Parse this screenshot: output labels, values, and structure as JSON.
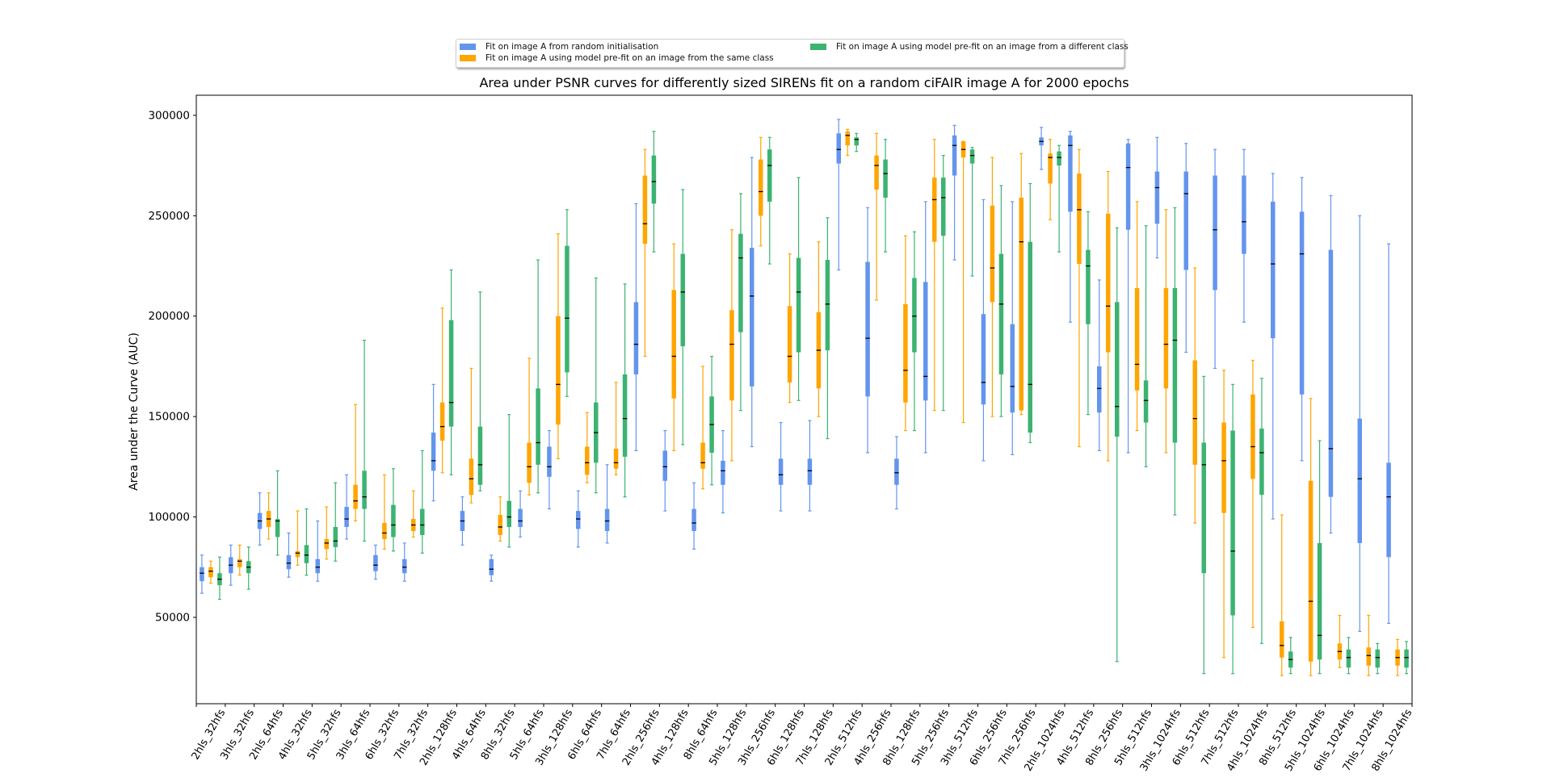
{
  "chart_data": {
    "type": "boxplot",
    "title": "Area under PSNR curves for differently sized SIRENs fit on a random ciFAIR image A for 2000 epochs",
    "ylabel": "Area under the Curve (AUC)",
    "xlabel": "",
    "ylim": [
      7000,
      310000
    ],
    "yticks": [
      50000,
      100000,
      150000,
      200000,
      250000,
      300000
    ],
    "grid": false,
    "legend_position": "top-center",
    "categories": [
      "2hls_32hfs",
      "3hls_32hfs",
      "2hls_64hfs",
      "4hls_32hfs",
      "5hls_32hfs",
      "3hls_64hfs",
      "6hls_32hfs",
      "7hls_32hfs",
      "2hls_128hfs",
      "4hls_64hfs",
      "8hls_32hfs",
      "5hls_64hfs",
      "3hls_128hfs",
      "6hls_64hfs",
      "7hls_64hfs",
      "2hls_256hfs",
      "4hls_128hfs",
      "8hls_64hfs",
      "5hls_128hfs",
      "3hls_256hfs",
      "6hls_128hfs",
      "7hls_128hfs",
      "2hls_512hfs",
      "4hls_256hfs",
      "8hls_128hfs",
      "5hls_256hfs",
      "3hls_512hfs",
      "6hls_256hfs",
      "7hls_256hfs",
      "2hls_1024hfs",
      "4hls_512hfs",
      "8hls_256hfs",
      "5hls_512hfs",
      "3hls_1024hfs",
      "6hls_512hfs",
      "7hls_512hfs",
      "4hls_1024hfs",
      "8hls_512hfs",
      "5hls_1024hfs",
      "6hls_1024hfs",
      "7hls_1024hfs",
      "8hls_1024hfs"
    ],
    "series": [
      {
        "name": "Fit on image A from random initialisation",
        "color": "#6495ED",
        "boxes": [
          [
            62000,
            68000,
            72000,
            75000,
            81000
          ],
          [
            66000,
            72000,
            76000,
            80000,
            86000
          ],
          [
            86000,
            94000,
            98000,
            102000,
            112000
          ],
          [
            70000,
            74000,
            77000,
            81000,
            92000
          ],
          [
            68000,
            72000,
            75000,
            79000,
            98000
          ],
          [
            89000,
            95000,
            99000,
            105000,
            121000
          ],
          [
            69000,
            73000,
            76000,
            81000,
            86000
          ],
          [
            68000,
            72000,
            75000,
            79000,
            87000
          ],
          [
            108000,
            123000,
            128000,
            142000,
            166000
          ],
          [
            86000,
            93000,
            98000,
            103000,
            110000
          ],
          [
            68000,
            71000,
            74000,
            79000,
            81000
          ],
          [
            90000,
            95000,
            98000,
            104000,
            113000
          ],
          [
            104000,
            120000,
            125000,
            135000,
            143000
          ],
          [
            85000,
            94000,
            99000,
            103000,
            113000
          ],
          [
            87000,
            93000,
            98000,
            104000,
            126000
          ],
          [
            133000,
            171000,
            186000,
            207000,
            256000
          ],
          [
            103000,
            118000,
            125000,
            133000,
            143000
          ],
          [
            84000,
            93000,
            97000,
            104000,
            117000
          ],
          [
            102000,
            116000,
            123000,
            128000,
            143000
          ],
          [
            135000,
            165000,
            210000,
            234000,
            279000
          ],
          [
            103000,
            116000,
            121000,
            129000,
            147000
          ],
          [
            103000,
            116000,
            123000,
            129000,
            148000
          ],
          [
            223000,
            276000,
            283000,
            291000,
            298000
          ],
          [
            132000,
            160000,
            189000,
            227000,
            254000
          ],
          [
            104000,
            116000,
            122000,
            129000,
            140000
          ],
          [
            132000,
            158000,
            170000,
            217000,
            257000
          ],
          [
            228000,
            270000,
            285000,
            290000,
            295000
          ],
          [
            128000,
            156000,
            167000,
            201000,
            258000
          ],
          [
            131000,
            152000,
            165000,
            196000,
            257000
          ],
          [
            273000,
            285000,
            287000,
            289000,
            294000
          ],
          [
            197000,
            252000,
            285000,
            290000,
            292000
          ],
          [
            133000,
            152000,
            164000,
            175000,
            218000
          ],
          [
            132000,
            243000,
            274000,
            286000,
            288000
          ],
          [
            229000,
            246000,
            264000,
            272000,
            289000
          ],
          [
            182000,
            223000,
            261000,
            272000,
            286000
          ],
          [
            174000,
            213000,
            243000,
            270000,
            283000
          ],
          [
            197000,
            231000,
            247000,
            270000,
            283000
          ],
          [
            99000,
            189000,
            226000,
            257000,
            271000
          ],
          [
            128000,
            161000,
            231000,
            252000,
            269000
          ],
          [
            92000,
            110000,
            134000,
            233000,
            260000
          ],
          [
            43000,
            87000,
            119000,
            149000,
            250000
          ],
          [
            47000,
            80000,
            110000,
            127000,
            236000
          ]
        ]
      },
      {
        "name": "Fit on image A using model pre-fit on an image from the same class",
        "color": "#FFA500",
        "boxes": [
          [
            67000,
            70000,
            73000,
            75000,
            78000
          ],
          [
            71000,
            75000,
            78000,
            79000,
            86000
          ],
          [
            89000,
            95000,
            99000,
            103000,
            112000
          ],
          [
            76000,
            80000,
            82000,
            83000,
            103000
          ],
          [
            79000,
            84000,
            87000,
            89000,
            105000
          ],
          [
            98000,
            104000,
            108000,
            116000,
            156000
          ],
          [
            84000,
            89000,
            92000,
            97000,
            121000
          ],
          [
            90000,
            93000,
            96000,
            99000,
            113000
          ],
          [
            122000,
            138000,
            145000,
            157000,
            204000
          ],
          [
            107000,
            111000,
            119000,
            129000,
            174000
          ],
          [
            88000,
            91000,
            95000,
            101000,
            110000
          ],
          [
            111000,
            117000,
            125000,
            137000,
            179000
          ],
          [
            129000,
            146000,
            166000,
            200000,
            241000
          ],
          [
            117000,
            121000,
            127000,
            135000,
            152000
          ],
          [
            121000,
            124000,
            127000,
            134000,
            167000
          ],
          [
            180000,
            236000,
            246000,
            270000,
            283000
          ],
          [
            133000,
            159000,
            180000,
            213000,
            236000
          ],
          [
            114000,
            124000,
            127000,
            137000,
            175000
          ],
          [
            128000,
            158000,
            186000,
            203000,
            243000
          ],
          [
            235000,
            250000,
            262000,
            278000,
            289000
          ],
          [
            157000,
            167000,
            180000,
            205000,
            231000
          ],
          [
            150000,
            164000,
            183000,
            202000,
            237000
          ],
          [
            280000,
            285000,
            290000,
            292000,
            293000
          ],
          [
            208000,
            263000,
            275000,
            280000,
            291000
          ],
          [
            143000,
            157000,
            173000,
            206000,
            240000
          ],
          [
            153000,
            237000,
            258000,
            269000,
            288000
          ],
          [
            147000,
            279000,
            283000,
            287000,
            287000
          ],
          [
            150000,
            207000,
            224000,
            255000,
            279000
          ],
          [
            151000,
            153000,
            237000,
            259000,
            281000
          ],
          [
            248000,
            266000,
            279000,
            281000,
            288000
          ],
          [
            135000,
            226000,
            253000,
            271000,
            283000
          ],
          [
            128000,
            182000,
            205000,
            251000,
            272000
          ],
          [
            143000,
            163000,
            176000,
            214000,
            257000
          ],
          [
            132000,
            164000,
            186000,
            214000,
            253000
          ],
          [
            97000,
            126000,
            149000,
            178000,
            224000
          ],
          [
            30000,
            102000,
            128000,
            147000,
            173000
          ],
          [
            45000,
            119000,
            135000,
            161000,
            178000
          ],
          [
            21000,
            30000,
            36000,
            48000,
            101000
          ],
          [
            21000,
            28000,
            58000,
            118000,
            159000
          ],
          [
            25000,
            29000,
            33000,
            37000,
            51000
          ],
          [
            21000,
            26000,
            31000,
            35000,
            51000
          ],
          [
            21000,
            26000,
            30000,
            34000,
            39000
          ]
        ]
      },
      {
        "name": "Fit on image A using model pre-fit on an image from a different class",
        "color": "#3CB371",
        "boxes": [
          [
            59000,
            66000,
            69000,
            72000,
            80000
          ],
          [
            64000,
            72000,
            75000,
            78000,
            85000
          ],
          [
            81000,
            90000,
            98000,
            99000,
            123000
          ],
          [
            71000,
            77000,
            81000,
            86000,
            104000
          ],
          [
            78000,
            85000,
            88000,
            95000,
            117000
          ],
          [
            88000,
            104000,
            110000,
            123000,
            188000
          ],
          [
            83000,
            90000,
            96000,
            106000,
            124000
          ],
          [
            82000,
            91000,
            96000,
            104000,
            133000
          ],
          [
            121000,
            145000,
            157000,
            198000,
            223000
          ],
          [
            113000,
            116000,
            126000,
            145000,
            212000
          ],
          [
            85000,
            95000,
            100000,
            108000,
            151000
          ],
          [
            112000,
            126000,
            137000,
            164000,
            228000
          ],
          [
            160000,
            172000,
            199000,
            235000,
            253000
          ],
          [
            112000,
            127000,
            142000,
            157000,
            219000
          ],
          [
            110000,
            130000,
            149000,
            171000,
            216000
          ],
          [
            232000,
            256000,
            267000,
            280000,
            292000
          ],
          [
            136000,
            185000,
            212000,
            231000,
            263000
          ],
          [
            116000,
            132000,
            146000,
            160000,
            180000
          ],
          [
            153000,
            192000,
            229000,
            241000,
            261000
          ],
          [
            226000,
            257000,
            275000,
            283000,
            289000
          ],
          [
            158000,
            182000,
            212000,
            229000,
            269000
          ],
          [
            139000,
            183000,
            206000,
            228000,
            249000
          ],
          [
            282000,
            285000,
            288000,
            289000,
            291000
          ],
          [
            232000,
            259000,
            271000,
            278000,
            288000
          ],
          [
            143000,
            182000,
            200000,
            219000,
            242000
          ],
          [
            153000,
            240000,
            259000,
            269000,
            280000
          ],
          [
            220000,
            276000,
            280000,
            283000,
            284000
          ],
          [
            150000,
            171000,
            206000,
            231000,
            265000
          ],
          [
            137000,
            142000,
            166000,
            237000,
            266000
          ],
          [
            232000,
            275000,
            279000,
            282000,
            285000
          ],
          [
            151000,
            196000,
            225000,
            233000,
            252000
          ],
          [
            28000,
            140000,
            155000,
            207000,
            244000
          ],
          [
            125000,
            147000,
            158000,
            168000,
            245000
          ],
          [
            101000,
            137000,
            188000,
            214000,
            254000
          ],
          [
            22000,
            72000,
            126000,
            137000,
            170000
          ],
          [
            22000,
            51000,
            83000,
            143000,
            166000
          ],
          [
            37000,
            111000,
            132000,
            144000,
            169000
          ],
          [
            22000,
            25000,
            29000,
            33000,
            40000
          ],
          [
            22000,
            29000,
            41000,
            87000,
            138000
          ],
          [
            22000,
            25000,
            30000,
            34000,
            40000
          ],
          [
            22000,
            25000,
            30000,
            34000,
            37000
          ],
          [
            22000,
            25000,
            30000,
            34000,
            38000
          ]
        ]
      }
    ]
  }
}
